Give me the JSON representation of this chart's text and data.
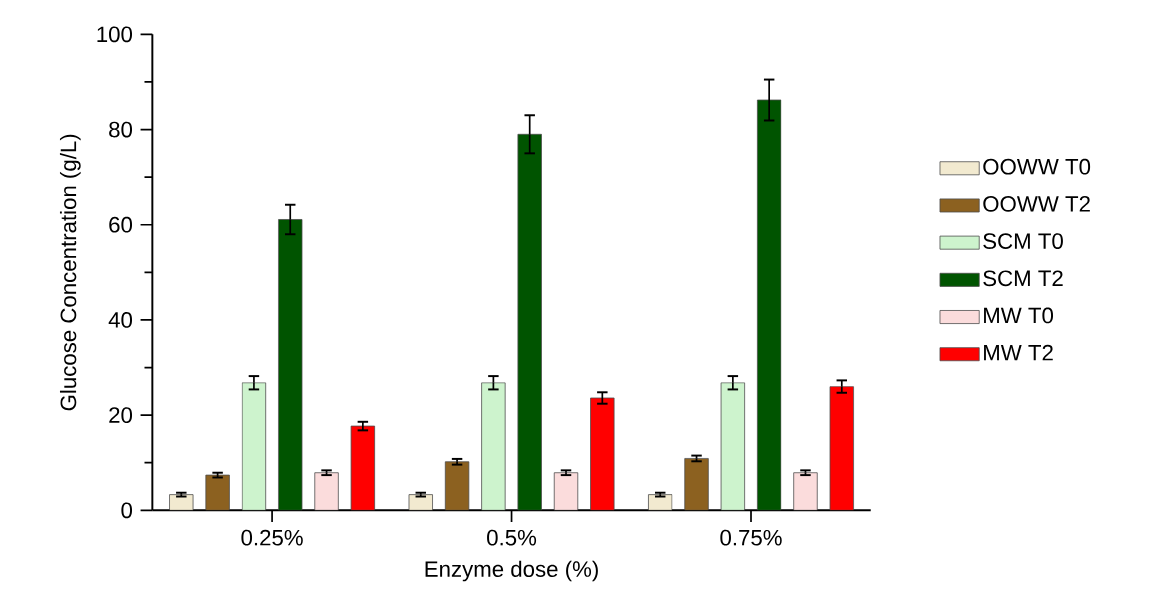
{
  "chart_data": {
    "type": "bar",
    "xlabel": "Enzyme dose (%)",
    "ylabel": "Glucose Concentration (g/L)",
    "categories": [
      "0.25%",
      "0.5%",
      "0.75%"
    ],
    "series": [
      {
        "name": "OOWW T0",
        "color": "#f2ead0",
        "values": [
          3.3,
          3.3,
          3.3
        ],
        "errors": [
          0.4,
          0.4,
          0.4
        ]
      },
      {
        "name": "OOWW T2",
        "color": "#8c6120",
        "values": [
          7.4,
          10.2,
          10.9
        ],
        "errors": [
          0.5,
          0.6,
          0.6
        ]
      },
      {
        "name": "SCM T0",
        "color": "#cdf3cd",
        "values": [
          26.8,
          26.8,
          26.8
        ],
        "errors": [
          1.4,
          1.4,
          1.4
        ]
      },
      {
        "name": "SCM T2",
        "color": "#005400",
        "values": [
          61.1,
          79.0,
          86.2
        ],
        "errors": [
          3.1,
          4.0,
          4.3
        ]
      },
      {
        "name": "MW T0",
        "color": "#fbdcdc",
        "values": [
          7.9,
          7.9,
          7.9
        ],
        "errors": [
          0.5,
          0.5,
          0.5
        ]
      },
      {
        "name": "MW T2",
        "color": "#ff0000",
        "values": [
          17.7,
          23.6,
          26.0
        ],
        "errors": [
          0.9,
          1.2,
          1.3
        ]
      }
    ],
    "ylim": [
      0,
      100
    ],
    "yticks": [
      0,
      20,
      40,
      60,
      80,
      100
    ],
    "legend": "right"
  }
}
